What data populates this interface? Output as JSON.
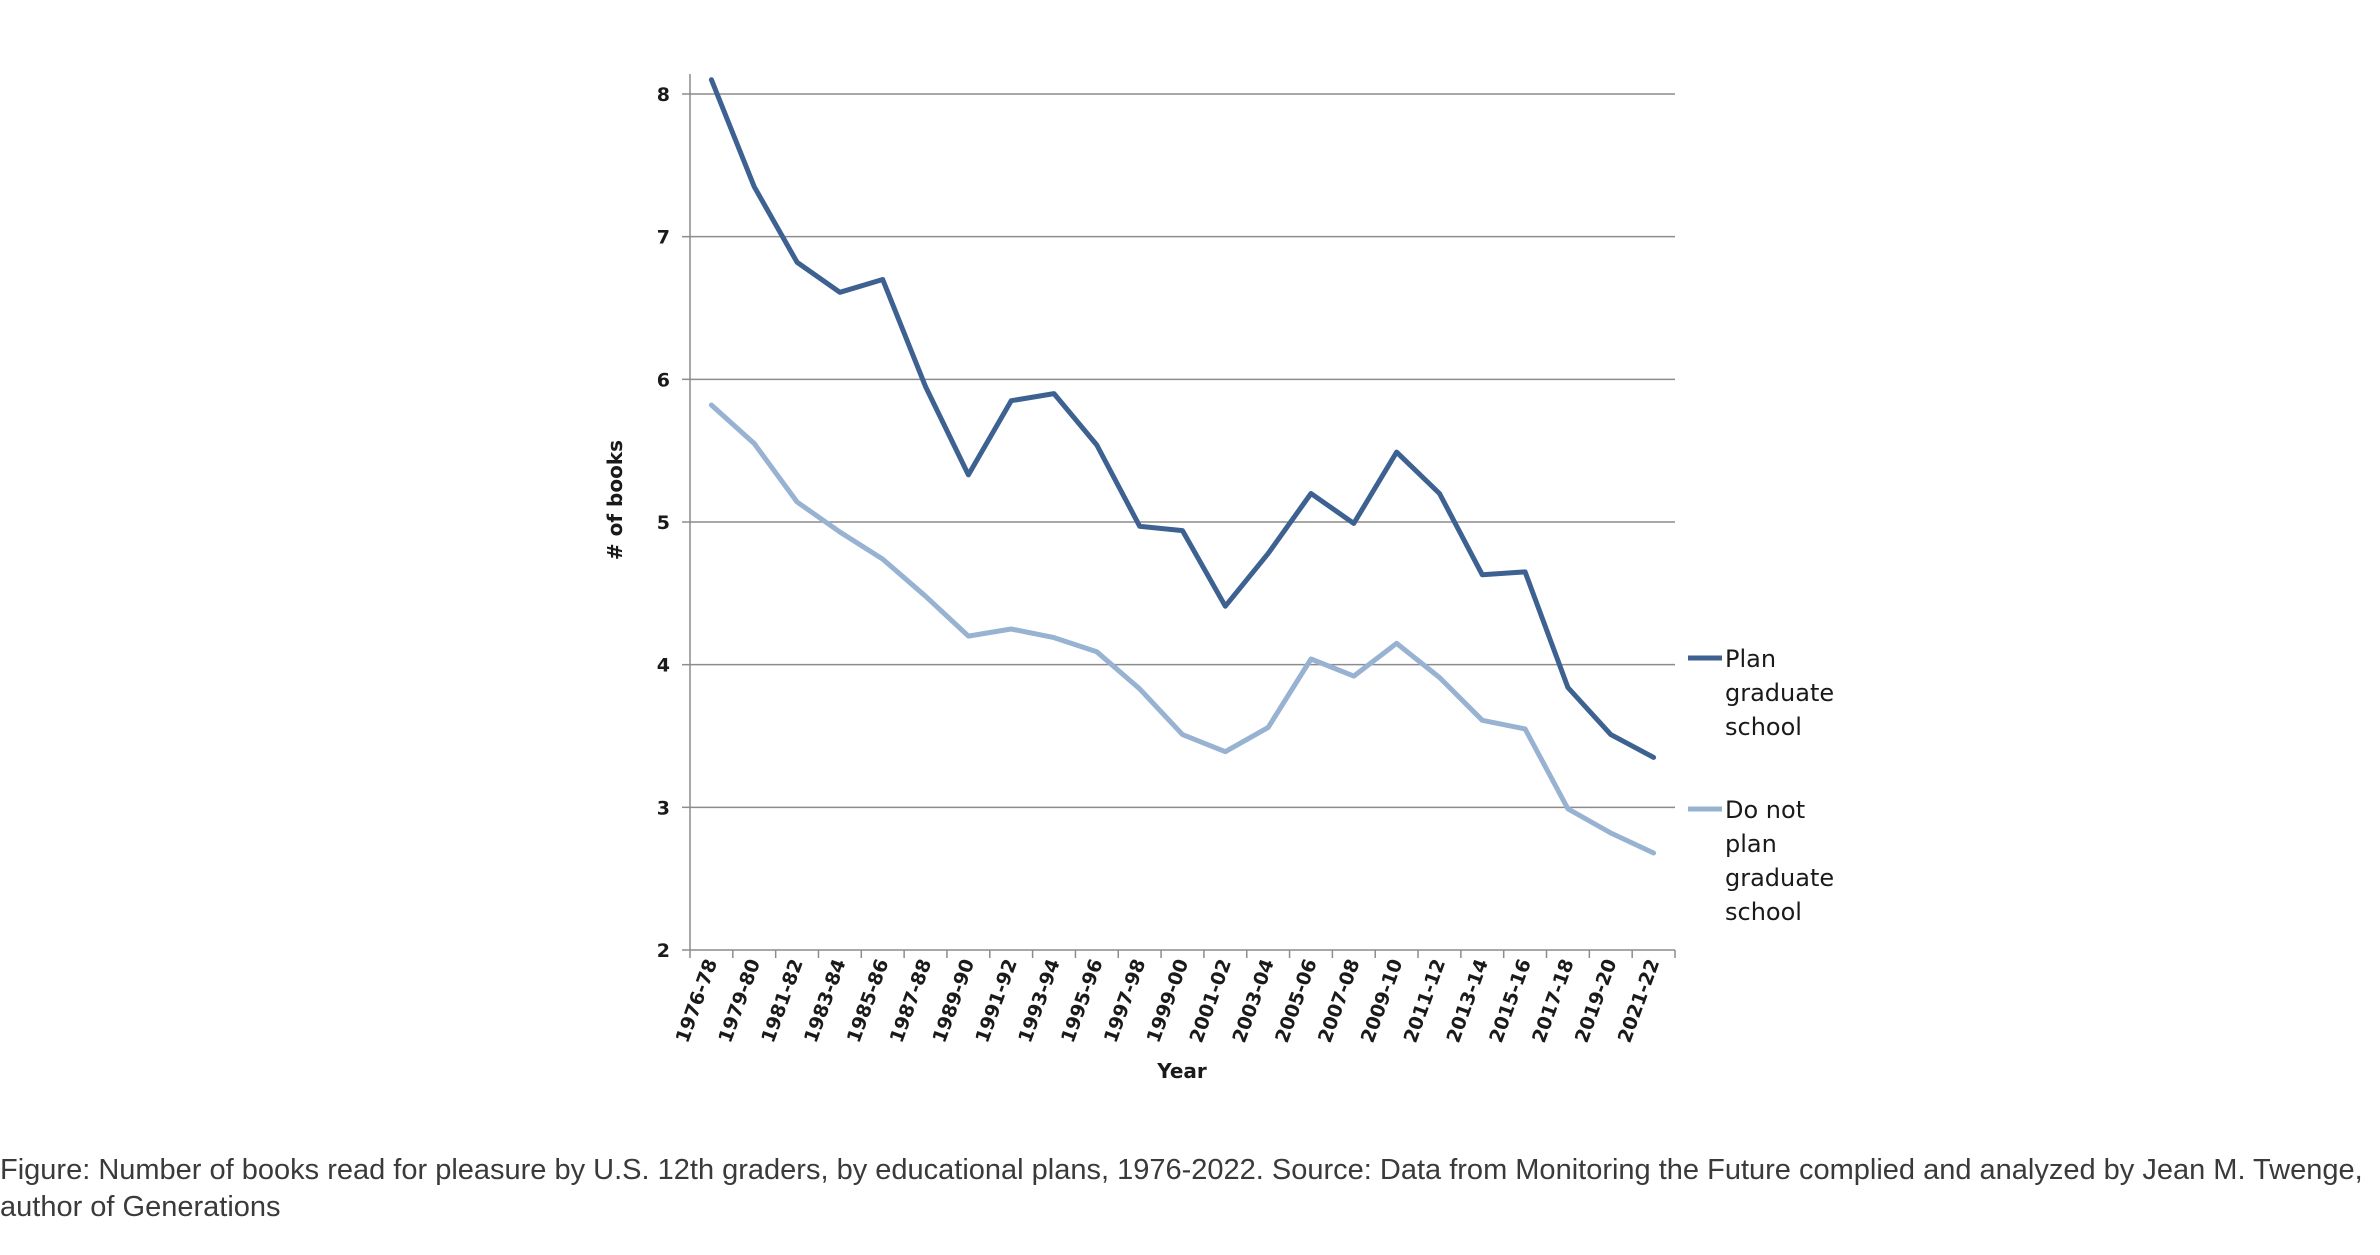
{
  "chart_data": {
    "type": "line",
    "title": "",
    "xlabel": "Year",
    "ylabel": "# of books",
    "ylim": [
      2,
      8
    ],
    "yticks": [
      2,
      3,
      4,
      5,
      6,
      7,
      8
    ],
    "grid": true,
    "legend_position": "right",
    "categories": [
      "1976-78",
      "1979-80",
      "1981-82",
      "1983-84",
      "1985-86",
      "1987-88",
      "1989-90",
      "1991-92",
      "1993-94",
      "1995-96",
      "1997-98",
      "1999-00",
      "2001-02",
      "2003-04",
      "2005-06",
      "2007-08",
      "2009-10",
      "2011-12",
      "2013-14",
      "2015-16",
      "2017-18",
      "2019-20",
      "2021-22"
    ],
    "series": [
      {
        "name": "Plan graduate school",
        "legend_lines": [
          "Plan",
          "graduate",
          "school"
        ],
        "color": "#3d6190",
        "values": [
          8.1,
          7.35,
          6.82,
          6.61,
          6.7,
          5.95,
          5.33,
          5.85,
          5.9,
          5.54,
          4.97,
          4.94,
          4.41,
          4.78,
          5.2,
          4.99,
          5.49,
          5.2,
          4.63,
          4.65,
          3.84,
          3.51,
          3.35
        ]
      },
      {
        "name": "Do not plan graduate school",
        "legend_lines": [
          "Do not",
          "plan",
          "graduate",
          "school"
        ],
        "color": "#98b2d2",
        "values": [
          5.82,
          5.55,
          5.14,
          4.93,
          4.74,
          4.48,
          4.2,
          4.25,
          4.19,
          4.09,
          3.83,
          3.51,
          3.39,
          3.56,
          4.04,
          3.92,
          4.15,
          3.91,
          3.61,
          3.55,
          2.99,
          2.82,
          2.68
        ]
      }
    ]
  },
  "caption": "Figure: Number of books read for pleasure by U.S. 12th graders, by educational plans, 1976-2022. Source: Data from Monitoring the Future complied and analyzed by Jean M. Twenge, author of Generations"
}
